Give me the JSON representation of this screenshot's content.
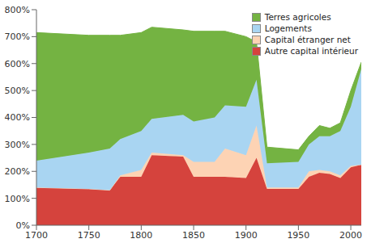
{
  "chart_data": {
    "type": "area",
    "stacked": true,
    "grid": false,
    "legend": "upper right",
    "x": [
      1700,
      1750,
      1770,
      1780,
      1800,
      1810,
      1840,
      1850,
      1870,
      1880,
      1900,
      1910,
      1920,
      1950,
      1960,
      1970,
      1980,
      1990,
      2000,
      2010
    ],
    "xlim": [
      1700,
      2010
    ],
    "xticks": [
      1700,
      1750,
      1800,
      1850,
      1900,
      1950,
      2000
    ],
    "ylim": [
      0,
      800
    ],
    "yticks": [
      {
        "value": 0,
        "label": "0%"
      },
      {
        "value": 100,
        "label": "100%"
      },
      {
        "value": 200,
        "label": "200%"
      },
      {
        "value": 300,
        "label": "300%"
      },
      {
        "value": 400,
        "label": "400%"
      },
      {
        "value": 500,
        "label": "500%"
      },
      {
        "value": 600,
        "label": "600%"
      },
      {
        "value": 700,
        "label": "700%"
      },
      {
        "value": 800,
        "label": "800%"
      }
    ],
    "series": [
      {
        "name": "Autre capital intérieur",
        "color": "#d5433d",
        "values": [
          140,
          135,
          130,
          180,
          180,
          260,
          255,
          180,
          180,
          180,
          175,
          250,
          135,
          135,
          180,
          195,
          190,
          175,
          215,
          225
        ]
      },
      {
        "name": "Capital étranger net",
        "color": "#fdd3b4",
        "values": [
          0,
          0,
          0,
          5,
          25,
          10,
          5,
          55,
          55,
          105,
          85,
          120,
          5,
          5,
          20,
          10,
          10,
          10,
          5,
          0
        ]
      },
      {
        "name": "Logements",
        "color": "#a9d5f2",
        "values": [
          100,
          135,
          155,
          135,
          145,
          125,
          150,
          150,
          165,
          160,
          180,
          170,
          90,
          95,
          100,
          125,
          130,
          165,
          220,
          355
        ]
      },
      {
        "name": "Terres agricoles",
        "color": "#74b342",
        "values": [
          475,
          435,
          420,
          385,
          365,
          340,
          315,
          335,
          320,
          275,
          260,
          140,
          60,
          45,
          30,
          40,
          30,
          30,
          60,
          25
        ]
      }
    ]
  }
}
